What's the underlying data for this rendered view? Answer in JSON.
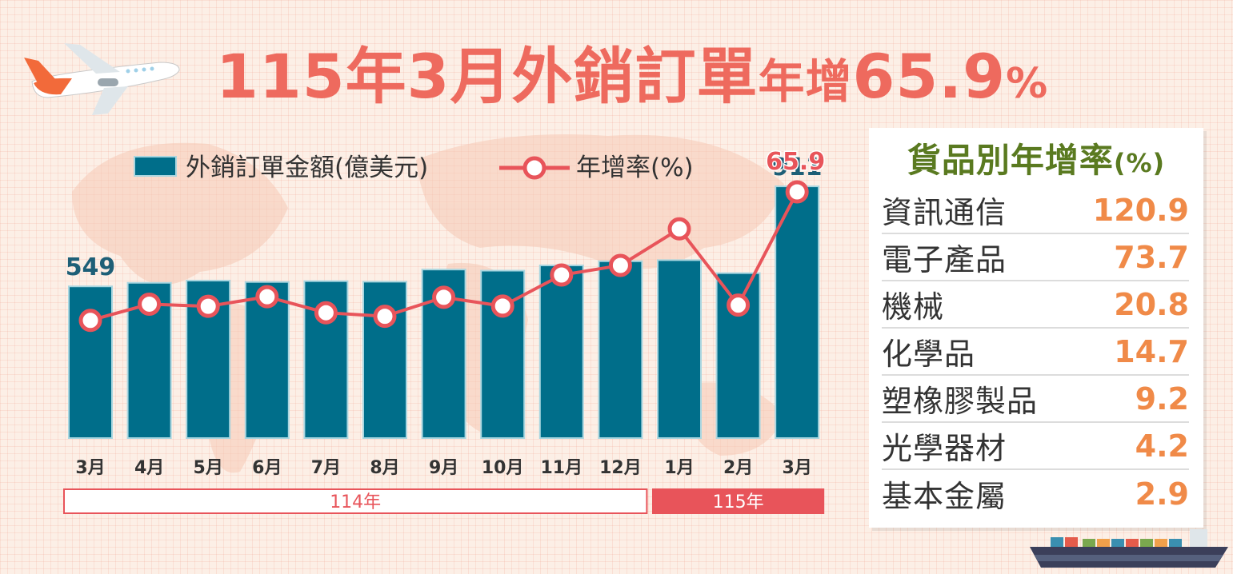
{
  "title": {
    "period": "115年3月",
    "subject": "外銷訂單",
    "growth_label": "年增",
    "growth_value": "65.9",
    "pct_sign": "%"
  },
  "colors": {
    "bar": "#006e8a",
    "bar_border": "#a9d6e0",
    "line": "#e8545a",
    "title": "#ee6a5e",
    "value_orange": "#f08a48",
    "panel_title": "#5a7a20"
  },
  "chart_data": {
    "type": "bar",
    "categories": [
      "3月",
      "4月",
      "5月",
      "6月",
      "7月",
      "8月",
      "9月",
      "10月",
      "11月",
      "12月",
      "1月",
      "2月",
      "3月"
    ],
    "series": [
      {
        "name": "外銷訂單金額(億美元)",
        "type": "bar",
        "values": [
          549,
          562,
          570,
          565,
          568,
          566,
          610,
          606,
          625,
          640,
          644,
          597,
          911
        ]
      },
      {
        "name": "年增率(%)",
        "type": "line",
        "values": [
          0.2,
          8.5,
          7.4,
          12.3,
          4.1,
          2.3,
          12.0,
          7.5,
          23.4,
          28.3,
          47.0,
          8.0,
          65.9
        ]
      }
    ],
    "data_labels": [
      {
        "series": 0,
        "index": 0,
        "text": "549"
      },
      {
        "series": 0,
        "index": 12,
        "text": "911"
      },
      {
        "series": 1,
        "index": 12,
        "text": "65.9"
      }
    ],
    "year_groups": [
      {
        "label": "114年",
        "start": 0,
        "end": 9
      },
      {
        "label": "115年",
        "start": 10,
        "end": 12
      }
    ],
    "bar_ylim": [
      0,
      920
    ],
    "line_ylim": [
      -60,
      70
    ]
  },
  "breakdown": {
    "title": "貨品別年增率",
    "unit": "(%)",
    "items": [
      {
        "name": "資訊通信",
        "value": "120.9"
      },
      {
        "name": "電子產品",
        "value": "73.7"
      },
      {
        "name": "機械",
        "value": "20.8"
      },
      {
        "name": "化學品",
        "value": "14.7"
      },
      {
        "name": "塑橡膠製品",
        "value": "9.2"
      },
      {
        "name": "光學器材",
        "value": "4.2"
      },
      {
        "name": "基本金屬",
        "value": "2.9"
      }
    ]
  }
}
